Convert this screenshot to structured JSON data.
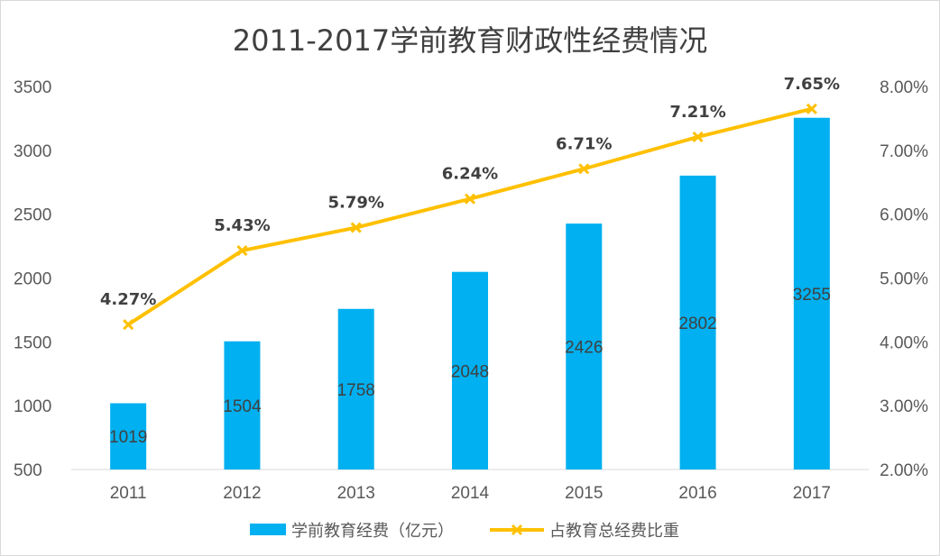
{
  "chart_data": {
    "type": "bar",
    "title": "2011-2017学前教育财政性经费情况",
    "categories": [
      "2011",
      "2012",
      "2013",
      "2014",
      "2015",
      "2016",
      "2017"
    ],
    "series": [
      {
        "name": "学前教育经费（亿元）",
        "kind": "bar",
        "axis": "left",
        "color": "#00b0f0",
        "values": [
          1019,
          1504,
          1758,
          2048,
          2426,
          2802,
          3255
        ]
      },
      {
        "name": "占教育总经费比重",
        "kind": "line",
        "axis": "right",
        "color": "#ffc000",
        "marker": "x",
        "values": [
          4.27,
          5.43,
          5.79,
          6.24,
          6.71,
          7.21,
          7.65
        ],
        "labels": [
          "4.27%",
          "5.43%",
          "5.79%",
          "6.24%",
          "6.71%",
          "7.21%",
          "7.65%"
        ]
      }
    ],
    "y_left": {
      "range": [
        500,
        3500
      ],
      "ticks": [
        "500",
        "1000",
        "1500",
        "2000",
        "2500",
        "3000",
        "3500"
      ]
    },
    "y_right": {
      "range": [
        2.0,
        8.0
      ],
      "ticks": [
        "2.00%",
        "3.00%",
        "4.00%",
        "5.00%",
        "6.00%",
        "7.00%",
        "8.00%"
      ]
    },
    "grid": false,
    "legend": "bottom"
  }
}
